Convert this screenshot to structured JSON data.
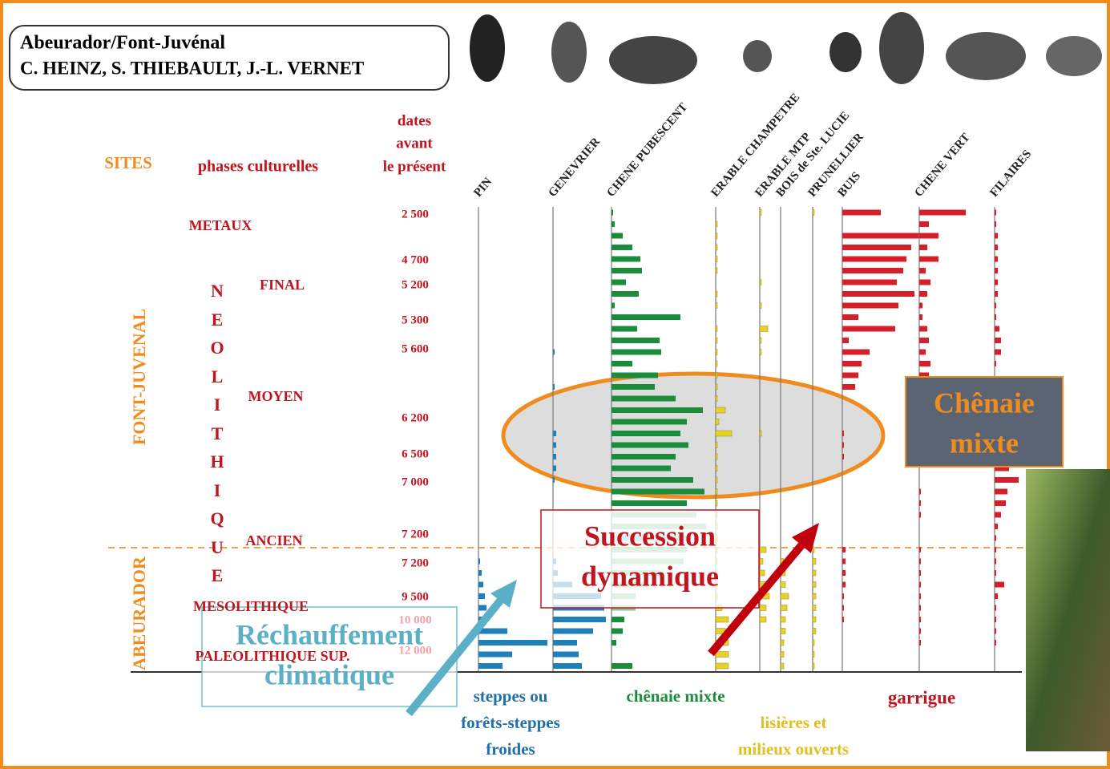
{
  "title_box": {
    "line1": "Abeurador/Font-Juvénal",
    "line2": "C. HEINZ, S. THIEBAULT, J.-L. VERNET"
  },
  "headers": {
    "sites": "SITES",
    "phases": "phases culturelles",
    "dates": [
      "dates",
      "avant",
      "le présent"
    ]
  },
  "sites": [
    "FONT-JUVENAL",
    "ABEURADOR"
  ],
  "neolithique": "NEOLITHIQUE",
  "phases": [
    "METAUX",
    "FINAL",
    "MOYEN",
    "ANCIEN",
    "MESOLITHIQUE",
    "PALEOLITHIQUE SUP."
  ],
  "dates": [
    "2 500",
    "4 700",
    "5 200",
    "5 300",
    "5 600",
    "6 200",
    "6 500",
    "7 000",
    "7 200",
    "7 200",
    "9 500",
    "10 000",
    "12 000"
  ],
  "taxa": [
    {
      "name": "PIN",
      "color": "#1f7fb8",
      "values": [
        0,
        0,
        0,
        0,
        0,
        0,
        0,
        0,
        0,
        0,
        0,
        0,
        0,
        0,
        0,
        0,
        0,
        0,
        0,
        0,
        0,
        0,
        0,
        0,
        0,
        0,
        0,
        0,
        0,
        0,
        1,
        2,
        3,
        4,
        5,
        3,
        18,
        43,
        21,
        15
      ]
    },
    {
      "name": "GENEVRIER",
      "color": "#1f7fb8",
      "values": [
        0,
        0,
        0,
        0,
        0,
        0,
        0,
        0,
        0,
        0,
        0,
        0,
        1,
        0,
        0,
        1,
        0,
        0,
        0,
        2,
        2,
        2,
        2,
        1,
        0,
        0,
        0,
        0,
        0,
        0,
        2,
        3,
        12,
        30,
        32,
        33,
        25,
        15,
        16,
        18
      ]
    },
    {
      "name": "CHENE PUBESCENT",
      "color": "#1a8c3a",
      "values": [
        1,
        2,
        7,
        13,
        18,
        19,
        9,
        17,
        2,
        43,
        16,
        30,
        31,
        13,
        29,
        27,
        40,
        57,
        47,
        43,
        48,
        40,
        37,
        51,
        58,
        47,
        53,
        59,
        50,
        47,
        45,
        30,
        22,
        15,
        15,
        8,
        7,
        3,
        0,
        13
      ]
    },
    {
      "name": "ERABLE CHAMPETRE",
      "color": "#e8d22a",
      "values": [
        0,
        1,
        1,
        1,
        1,
        1,
        0,
        1,
        1,
        0,
        1,
        1,
        1,
        1,
        1,
        1,
        1,
        6,
        2,
        10,
        1,
        1,
        1,
        1,
        1,
        1,
        1,
        1,
        1,
        1,
        1,
        1,
        1,
        1,
        4,
        8,
        6,
        8,
        8,
        8
      ]
    },
    {
      "name": "ERABLE MTP",
      "color": "#e8d22a",
      "values": [
        1,
        0,
        0,
        0,
        0,
        0,
        1,
        0,
        1,
        0,
        5,
        1,
        1,
        0,
        0,
        0,
        0,
        0,
        0,
        1,
        0,
        0,
        0,
        0,
        0,
        0,
        0,
        0,
        0,
        4,
        2,
        3,
        4,
        6,
        4,
        4,
        0,
        0,
        0,
        0
      ]
    },
    {
      "name": "BOIS de Ste. LUCIE",
      "color": "#e8d22a",
      "values": [
        0,
        0,
        0,
        0,
        0,
        0,
        0,
        0,
        0,
        0,
        0,
        0,
        0,
        0,
        0,
        0,
        0,
        0,
        0,
        0,
        0,
        0,
        0,
        0,
        0,
        0,
        0,
        0,
        0,
        0,
        2,
        3,
        3,
        5,
        4,
        3,
        3,
        2,
        2,
        2
      ]
    },
    {
      "name": "PRUNELLIER",
      "color": "#e8d22a",
      "values": [
        1,
        0,
        0,
        0,
        0,
        0,
        0,
        0,
        0,
        0,
        0,
        0,
        0,
        0,
        0,
        0,
        0,
        0,
        0,
        0,
        0,
        0,
        0,
        0,
        0,
        0,
        0,
        0,
        0,
        1,
        2,
        2,
        2,
        2,
        2,
        2,
        2,
        1,
        1,
        1
      ]
    },
    {
      "name": "BUIS",
      "color": "#d4202a",
      "values": [
        24,
        0,
        52,
        43,
        40,
        38,
        34,
        45,
        35,
        10,
        33,
        4,
        17,
        12,
        10,
        8,
        0,
        0,
        0,
        1,
        1,
        1,
        0,
        0,
        0,
        0,
        0,
        0,
        0,
        2,
        2,
        2,
        2,
        1,
        1,
        1,
        0,
        0,
        0,
        0
      ]
    },
    {
      "name": "CHENE VERT",
      "color": "#d4202a",
      "values": [
        29,
        6,
        12,
        5,
        12,
        4,
        7,
        5,
        2,
        2,
        5,
        6,
        4,
        7,
        6,
        0,
        0,
        0,
        0,
        0,
        0,
        0,
        0,
        0,
        1,
        1,
        1,
        0,
        0,
        1,
        1,
        1,
        1,
        1,
        1,
        1,
        1,
        1,
        0,
        0
      ]
    },
    {
      "name": "FILAIRES",
      "color": "#d4202a",
      "values": [
        1,
        1,
        2,
        2,
        2,
        2,
        2,
        2,
        1,
        1,
        3,
        4,
        4,
        1,
        0,
        0,
        0,
        0,
        0,
        0,
        0,
        0,
        9,
        15,
        8,
        7,
        4,
        2,
        1,
        1,
        1,
        1,
        6,
        2,
        1,
        1,
        1,
        1,
        0,
        0
      ]
    }
  ],
  "groups": {
    "steppe": [
      "steppes ou",
      "forêts-steppes",
      "froides"
    ],
    "chenaie": "chênaie mixte",
    "lisieres": [
      "lisières et",
      "milieux ouverts"
    ],
    "garrigue": "garrigue"
  },
  "callouts": {
    "chenaie": [
      "Chênaie",
      "mixte"
    ],
    "succession": [
      "Succession",
      "dynamique"
    ],
    "rechauffement": [
      "Réchauffement",
      "climatique"
    ]
  }
}
